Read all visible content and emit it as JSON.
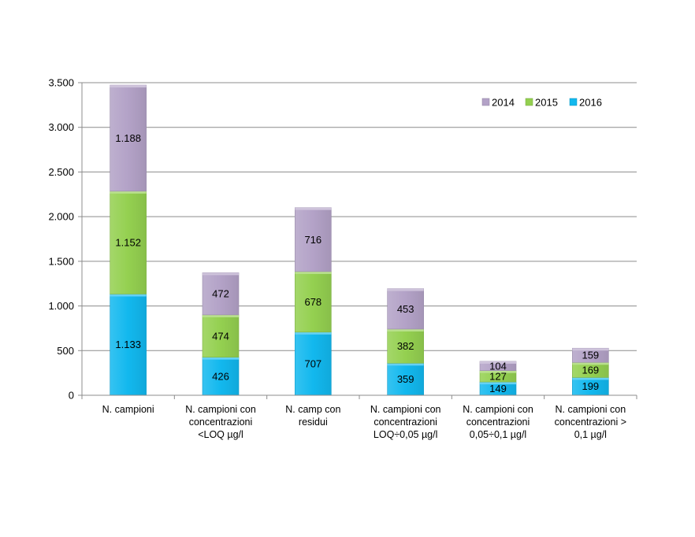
{
  "chart_data": {
    "type": "bar",
    "stacked": true,
    "categories": [
      [
        "N. campioni"
      ],
      [
        "N. campioni con",
        "concentrazioni",
        "<LOQ µg/l"
      ],
      [
        "N. camp con",
        "residui"
      ],
      [
        "N. campioni con",
        "concentrazioni",
        "LOQ÷0,05 µg/l"
      ],
      [
        "N. campioni con",
        "concentrazioni",
        "0,05÷0,1 µg/l"
      ],
      [
        "N. campioni con",
        "concentrazioni >",
        "0,1 µg/l"
      ]
    ],
    "series": [
      {
        "name": "2016",
        "color": "#12b8ee",
        "values": [
          1133,
          426,
          707,
          359,
          149,
          199
        ],
        "labels": [
          "1.133",
          "426",
          "707",
          "359",
          "149",
          "199"
        ]
      },
      {
        "name": "2015",
        "color": "#94d050",
        "values": [
          1152,
          474,
          678,
          382,
          127,
          169
        ],
        "labels": [
          "1.152",
          "474",
          "678",
          "382",
          "127",
          "169"
        ]
      },
      {
        "name": "2014",
        "color": "#b3a2c7",
        "values": [
          1188,
          472,
          716,
          453,
          104,
          159
        ],
        "labels": [
          "1.188",
          "472",
          "716",
          "453",
          "104",
          "159"
        ]
      }
    ],
    "legend_order": [
      "2014",
      "2015",
      "2016"
    ],
    "legend_position": "top-right",
    "ylim": [
      0,
      3500
    ],
    "yticks": [
      0,
      500,
      1000,
      1500,
      2000,
      2500,
      3000,
      3500
    ],
    "ytick_labels": [
      "0",
      "500",
      "1.000",
      "1.500",
      "2.000",
      "2.500",
      "3.000",
      "3.500"
    ],
    "grid": true,
    "title": "",
    "xlabel": "",
    "ylabel": ""
  }
}
